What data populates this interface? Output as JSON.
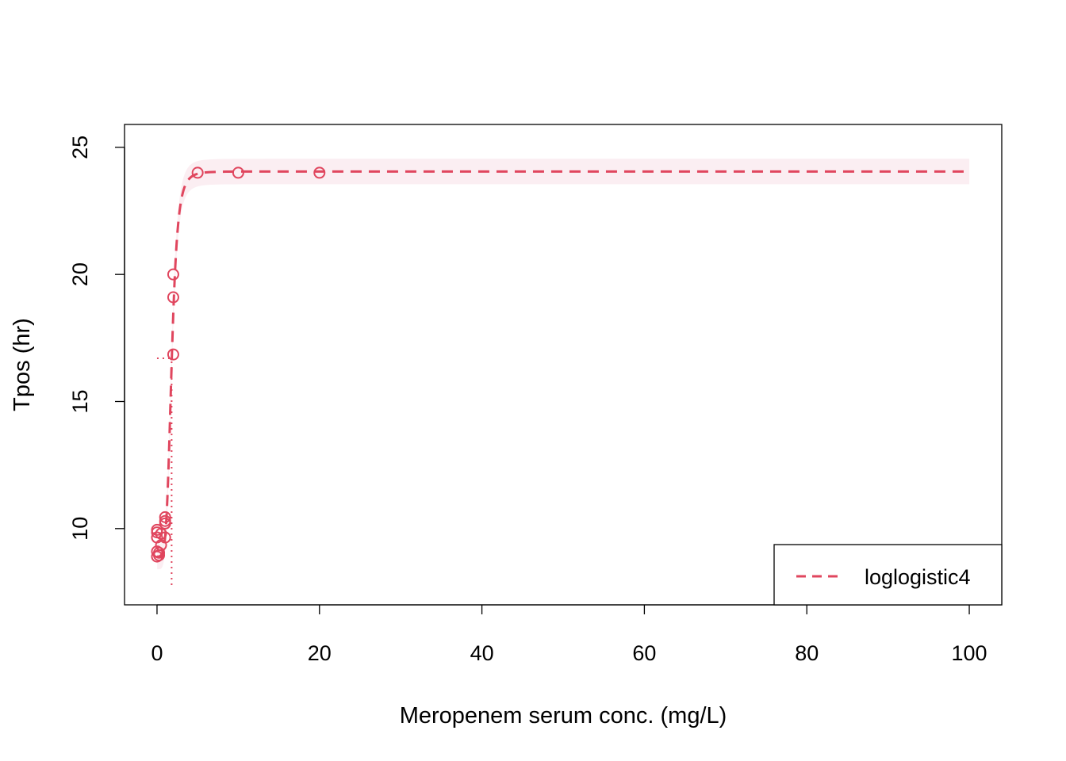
{
  "chart_data": {
    "type": "scatter",
    "title": "",
    "xlabel": "Meropenem serum conc. (mg/L)",
    "ylabel": "Tpos (hr)",
    "xlim": [
      -4,
      104
    ],
    "ylim": [
      7.0,
      25.9
    ],
    "xticks": [
      0,
      20,
      40,
      60,
      80,
      100
    ],
    "yticks": [
      10,
      15,
      20,
      25
    ],
    "grid": false,
    "legend_position": "bottom-right",
    "color": "#e0465e",
    "band_color": "#fbeef2",
    "points": {
      "x": [
        0,
        0,
        0,
        0,
        0,
        0.25,
        0.25,
        0.5,
        0.5,
        1,
        1,
        1,
        1,
        2,
        2,
        2,
        5,
        10,
        20
      ],
      "y": [
        9.95,
        9.85,
        9.65,
        9.1,
        8.9,
        8.95,
        9.05,
        9.35,
        9.8,
        10.45,
        10.3,
        10.2,
        9.65,
        20.0,
        19.1,
        16.85,
        24.0,
        24.0,
        24.0
      ]
    },
    "fit": {
      "name": "loglogistic4",
      "model": "log-logistic (4 parameters)",
      "lower": 8.9,
      "upper": 24.05,
      "ec50": 1.8,
      "slope": 5.0,
      "band_halfwidth": 0.5,
      "x_max": 100
    },
    "ec50_marker": {
      "x": 1.8,
      "y": 16.7
    },
    "legend": [
      {
        "label": "loglogistic4",
        "style": "dashed"
      }
    ]
  }
}
